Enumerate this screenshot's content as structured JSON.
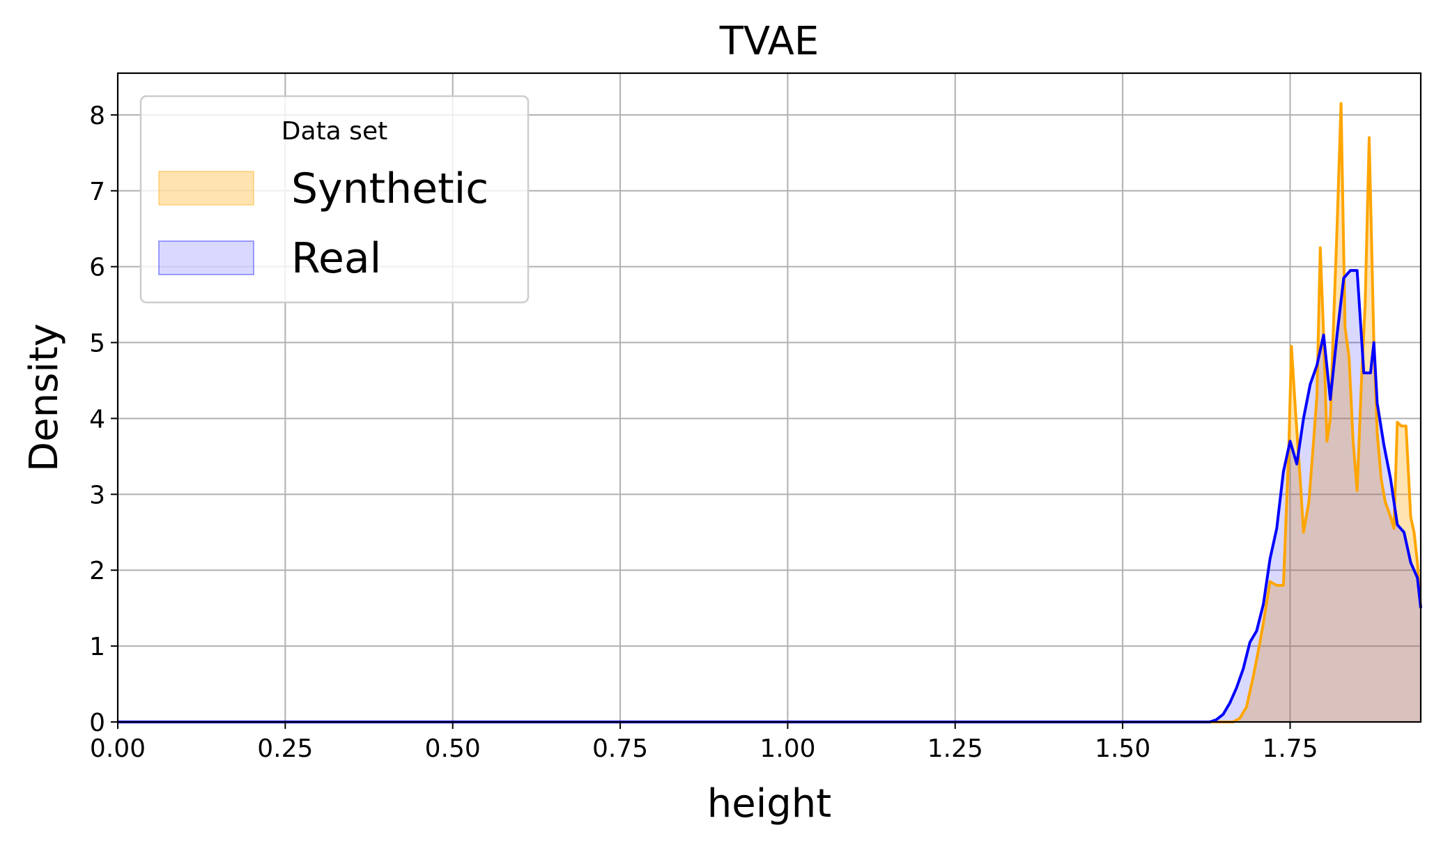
{
  "chart_data": {
    "type": "area",
    "title": "TVAE",
    "xlabel": "height",
    "ylabel": "Density",
    "xlim": [
      0.0,
      1.945
    ],
    "ylim": [
      0,
      8.55
    ],
    "xticks": [
      0.0,
      0.25,
      0.5,
      0.75,
      1.0,
      1.25,
      1.5,
      1.75
    ],
    "xtick_labels": [
      "0.00",
      "0.25",
      "0.50",
      "0.75",
      "1.00",
      "1.25",
      "1.50",
      "1.75"
    ],
    "yticks": [
      0,
      1,
      2,
      3,
      4,
      5,
      6,
      7,
      8
    ],
    "ytick_labels": [
      "0",
      "1",
      "2",
      "3",
      "4",
      "5",
      "6",
      "7",
      "8"
    ],
    "grid": true,
    "legend": {
      "title": "Data set",
      "placement": "top-left"
    },
    "series": [
      {
        "name": "Synthetic",
        "line_color": "#ffa500",
        "fill_color": "#ffa500",
        "fill_opacity": 0.3,
        "x": [
          0.0,
          1.62,
          1.665,
          1.675,
          1.685,
          1.695,
          1.705,
          1.71,
          1.72,
          1.73,
          1.74,
          1.748,
          1.752,
          1.758,
          1.765,
          1.77,
          1.778,
          1.785,
          1.79,
          1.795,
          1.8,
          1.805,
          1.81,
          1.815,
          1.82,
          1.826,
          1.832,
          1.838,
          1.844,
          1.85,
          1.857,
          1.862,
          1.868,
          1.875,
          1.88,
          1.886,
          1.892,
          1.9,
          1.905,
          1.91,
          1.916,
          1.923,
          1.93,
          1.935,
          1.94,
          1.945
        ],
        "y": [
          0.0,
          0.0,
          0.0,
          0.05,
          0.2,
          0.6,
          1.05,
          1.3,
          1.85,
          1.8,
          1.8,
          3.6,
          4.95,
          4.1,
          3.2,
          2.5,
          2.9,
          3.7,
          4.3,
          6.25,
          5.1,
          3.7,
          4.0,
          5.3,
          6.5,
          8.15,
          5.2,
          4.8,
          3.7,
          3.05,
          4.6,
          5.5,
          7.7,
          5.0,
          3.8,
          3.2,
          2.9,
          2.7,
          2.55,
          3.95,
          3.9,
          3.9,
          2.7,
          2.5,
          2.1,
          1.5
        ]
      },
      {
        "name": "Real",
        "line_color": "#0000ff",
        "fill_color": "#0000ff",
        "fill_opacity": 0.15,
        "x": [
          0.0,
          1.63,
          1.64,
          1.65,
          1.66,
          1.67,
          1.68,
          1.69,
          1.7,
          1.71,
          1.72,
          1.73,
          1.74,
          1.745,
          1.75,
          1.76,
          1.77,
          1.78,
          1.79,
          1.8,
          1.81,
          1.82,
          1.83,
          1.84,
          1.85,
          1.86,
          1.87,
          1.875,
          1.88,
          1.89,
          1.9,
          1.91,
          1.92,
          1.93,
          1.94,
          1.945
        ],
        "y": [
          0.0,
          0.0,
          0.03,
          0.1,
          0.25,
          0.45,
          0.7,
          1.05,
          1.2,
          1.55,
          2.15,
          2.55,
          3.3,
          3.5,
          3.7,
          3.4,
          4.0,
          4.45,
          4.7,
          5.1,
          4.25,
          5.1,
          5.85,
          5.95,
          5.95,
          4.6,
          4.6,
          5.0,
          4.2,
          3.65,
          3.2,
          2.6,
          2.5,
          2.1,
          1.9,
          1.5
        ]
      }
    ]
  }
}
